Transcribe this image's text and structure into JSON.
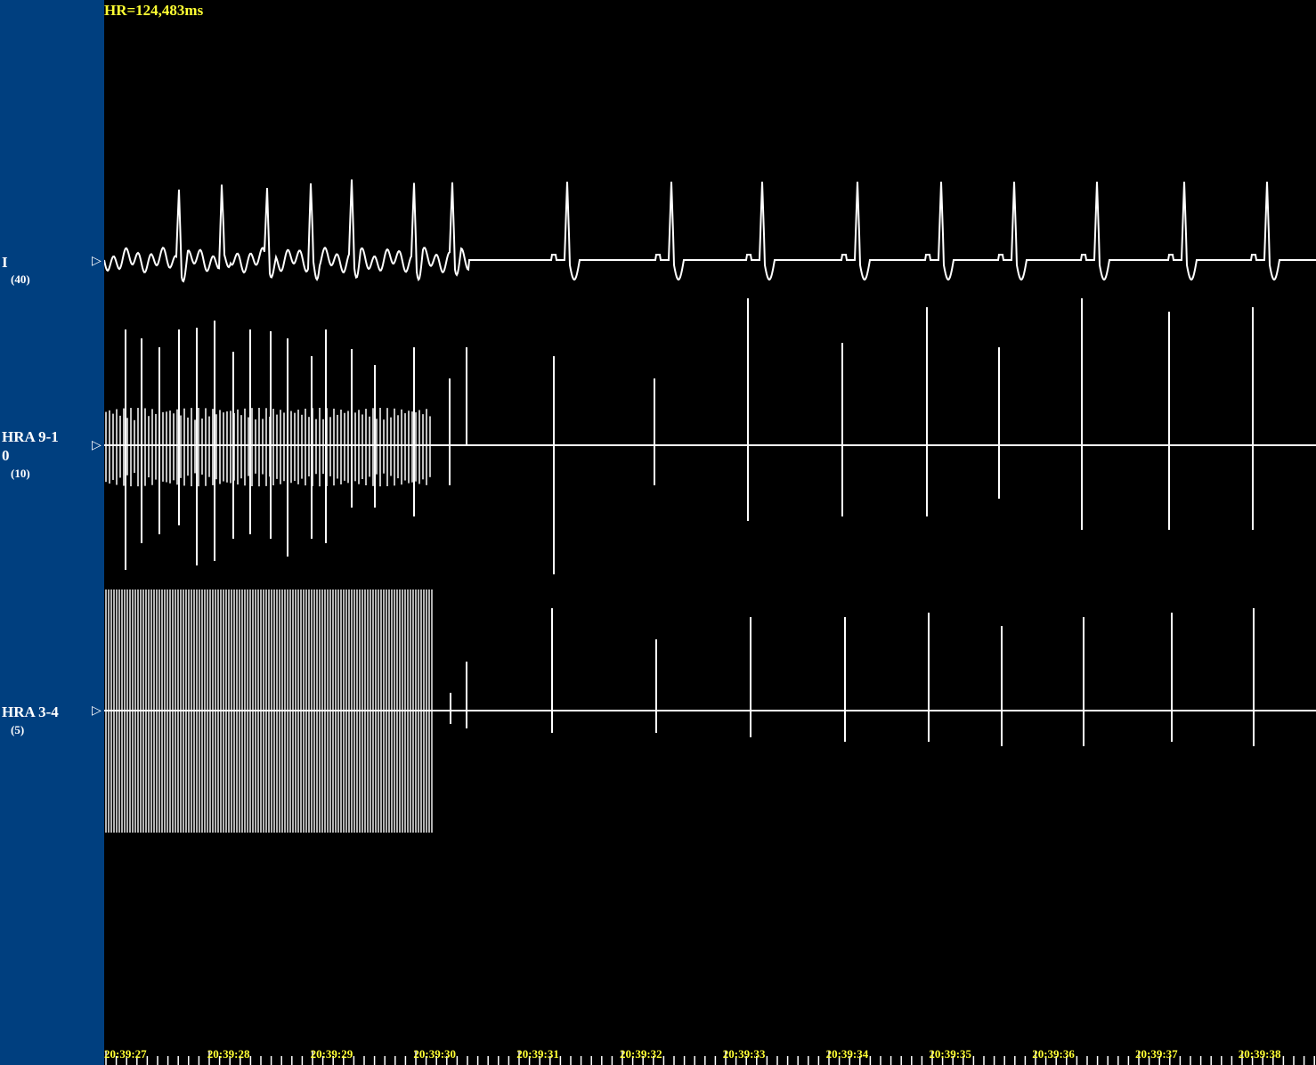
{
  "header": {
    "hr_readout": "HR=124,483ms"
  },
  "colors": {
    "sidebar": "#003f7f",
    "background": "#000000",
    "trace": "#ffffff",
    "annotation": "#ffff33"
  },
  "channels": [
    {
      "name": "I",
      "gain": "(40)"
    },
    {
      "name": "HRA 9-1\n0",
      "gain": "(10)"
    },
    {
      "name": "HRA 3-4",
      "gain": "(5)"
    }
  ],
  "marker_glyph": "▷",
  "time_axis": {
    "labels": [
      "20:39:27",
      "20:39:28",
      "20:39:29",
      "20:39:30",
      "20:39:31",
      "20:39:32",
      "20:39:33",
      "20:39:34",
      "20:39:35",
      "20:39:36",
      "20:39:37",
      "20:39:38"
    ]
  }
}
